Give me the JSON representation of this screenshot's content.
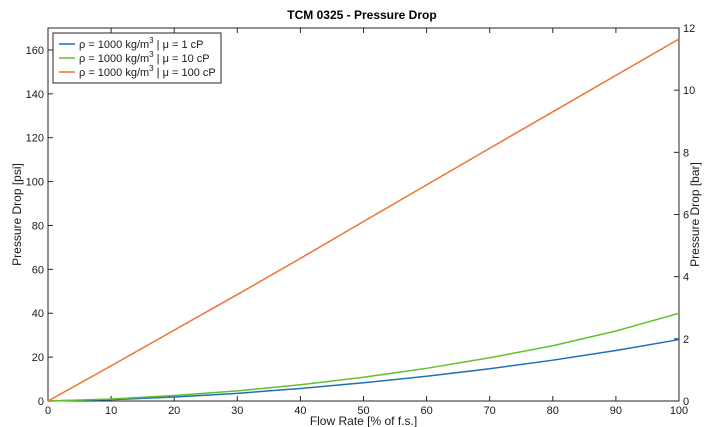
{
  "chart_data": {
    "type": "line",
    "title": "TCM 0325 - Pressure Drop",
    "xlabel": "Flow Rate [% of f.s.]",
    "ylabel": "Pressure Drop [psi]",
    "y2label": "Pressure Drop [bar]",
    "xlim": [
      0,
      100
    ],
    "ylim": [
      0,
      170
    ],
    "y2lim": [
      0,
      12
    ],
    "xticks": [
      0,
      10,
      20,
      30,
      40,
      50,
      60,
      70,
      80,
      90,
      100
    ],
    "yticks": [
      0,
      20,
      40,
      60,
      80,
      100,
      120,
      140,
      160
    ],
    "y2ticks": [
      0,
      2,
      4,
      6,
      8,
      10,
      12
    ],
    "grid": false,
    "legend_position": "top-left",
    "x": [
      0,
      10,
      20,
      30,
      40,
      50,
      60,
      70,
      80,
      90,
      100
    ],
    "series": [
      {
        "name_parts": [
          "ρ = 1000 kg/m",
          "3",
          " | μ = 1 cP"
        ],
        "color": "#1f6fb4",
        "values": [
          0,
          0.6,
          1.8,
          3.5,
          5.7,
          8.3,
          11.3,
          14.7,
          18.6,
          23.0,
          28.0
        ]
      },
      {
        "name_parts": [
          "ρ = 1000 kg/m",
          "3",
          " | μ = 10 cP"
        ],
        "color": "#62c02d",
        "values": [
          0,
          0.9,
          2.5,
          4.6,
          7.4,
          10.8,
          14.9,
          19.7,
          25.2,
          31.9,
          40.0
        ]
      },
      {
        "name_parts": [
          "ρ = 1000 kg/m",
          "3",
          " | μ = 100 cP"
        ],
        "color": "#f07230",
        "values": [
          0,
          16.0,
          32.3,
          48.5,
          65.0,
          81.8,
          98.5,
          115.2,
          131.8,
          148.4,
          165.0
        ]
      }
    ]
  }
}
